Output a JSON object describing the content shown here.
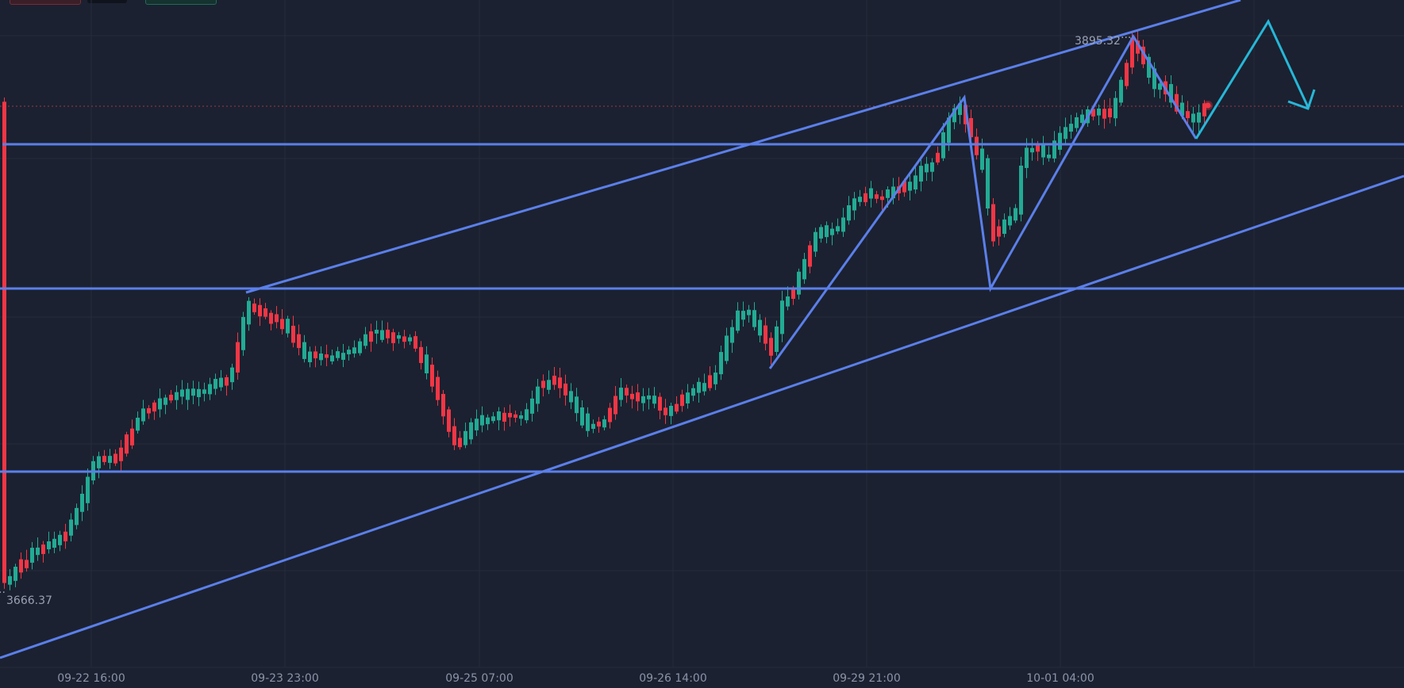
{
  "chart_data": {
    "type": "candlestick",
    "x_tick_labels": [
      "09-22 16:00",
      "09-23 23:00",
      "09-25 07:00",
      "09-26 14:00",
      "09-29 21:00",
      "10-01 04:00"
    ],
    "annotations": {
      "high_label": "3895.32",
      "low_label": "3666.37"
    },
    "price_range": [
      3640,
      3905
    ],
    "support_resistance_levels": [
      3716,
      3788,
      3844
    ],
    "last_price_line": 3859,
    "colors": {
      "background": "#1b2130",
      "bull": "#22ab94",
      "bear": "#f23645",
      "trendline": "#5b7fea",
      "projection": "#26b7d8",
      "grid": "#252c3b",
      "last_price_line": "#a0354a"
    },
    "grid": true
  }
}
